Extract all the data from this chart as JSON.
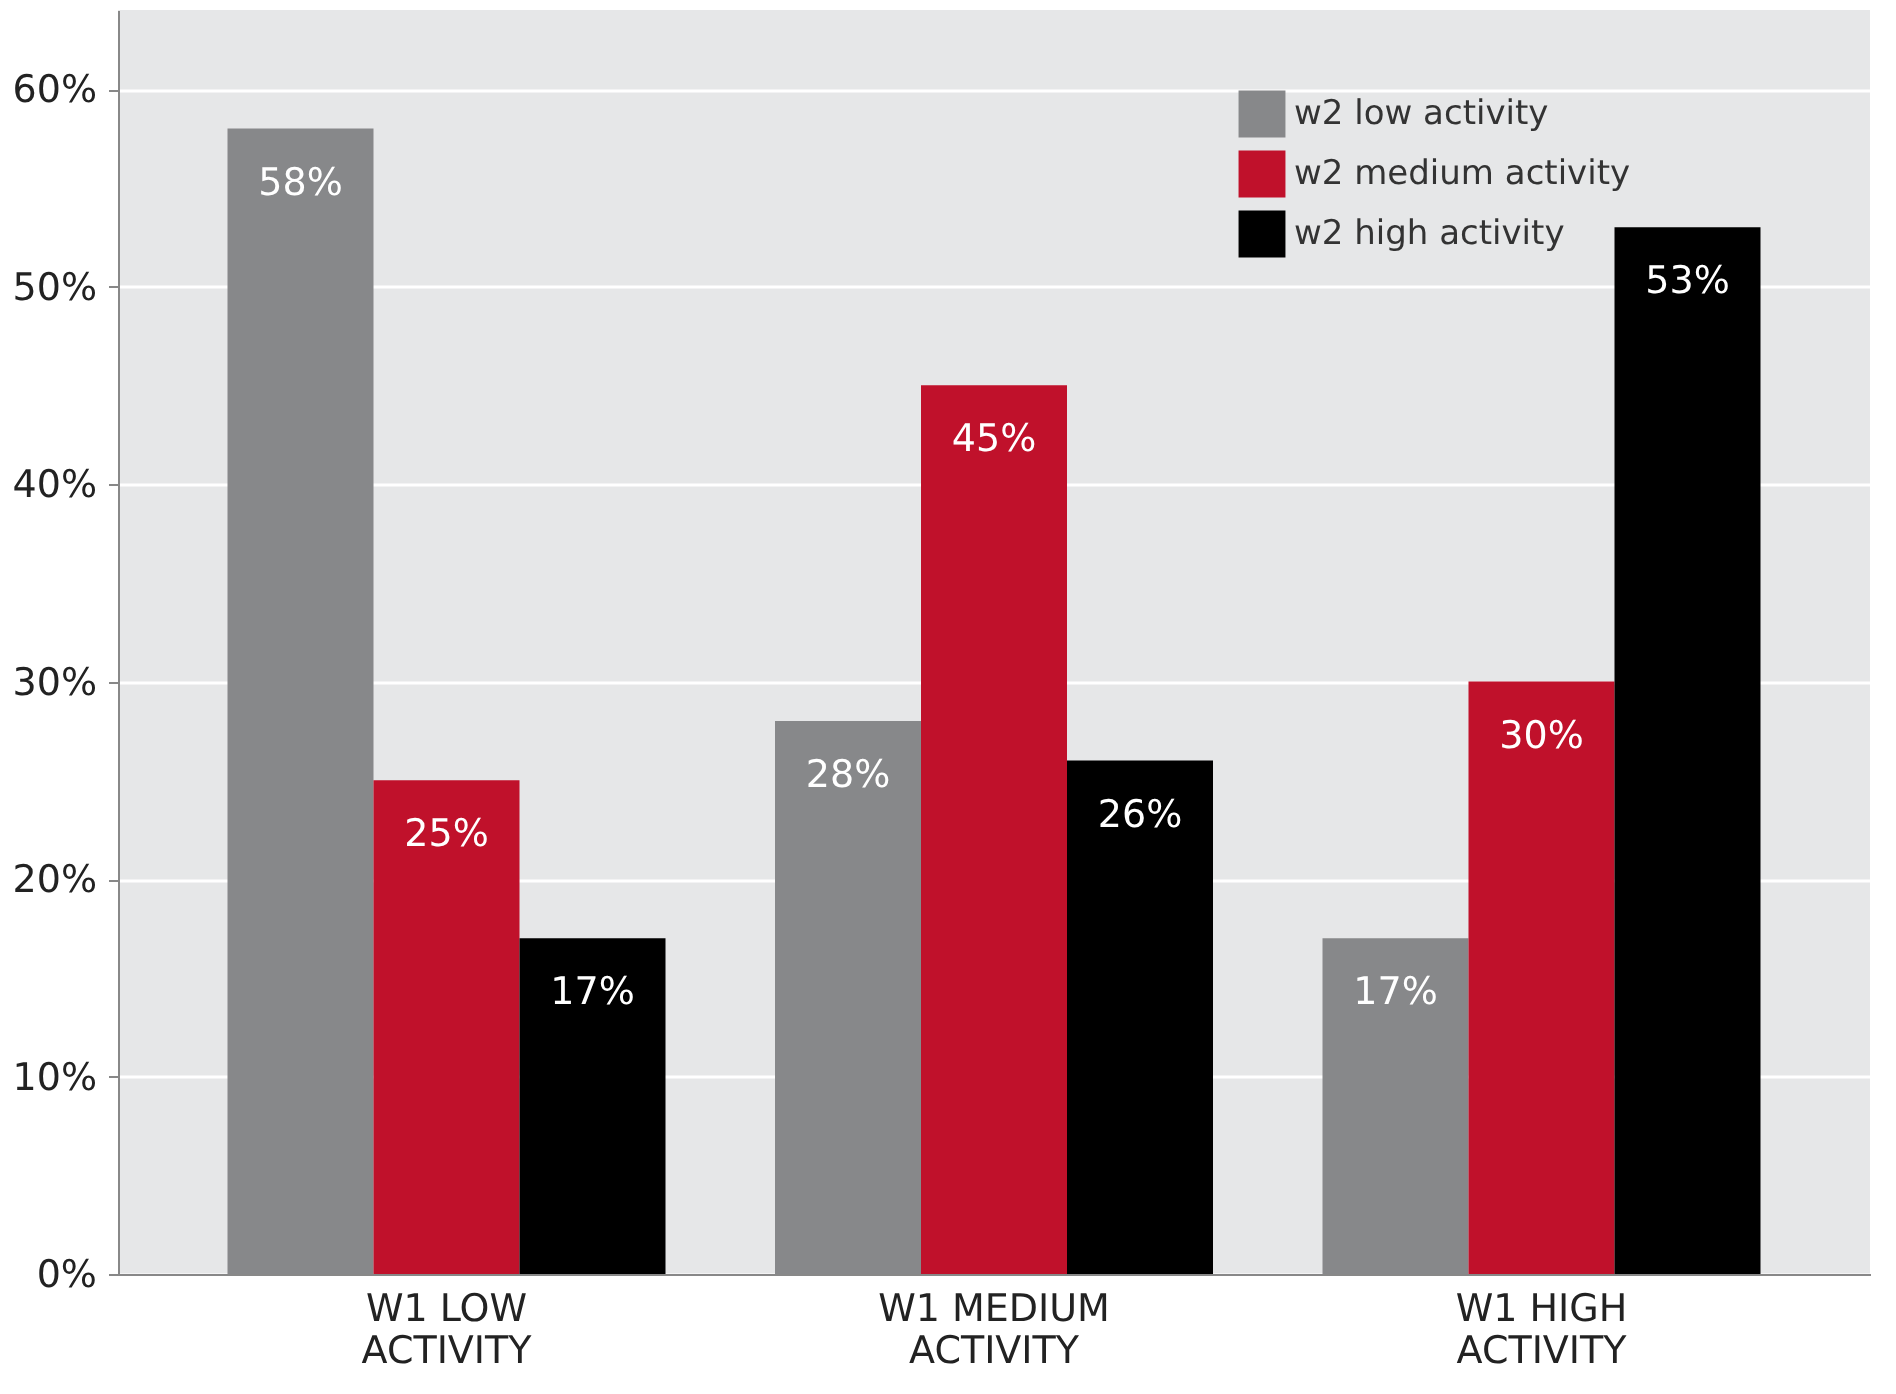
{
  "chart_data": {
    "type": "bar",
    "categories": [
      "W1 LOW ACTIVITY",
      "W1 MEDIUM ACTIVITY",
      "W1 HIGH ACTIVITY"
    ],
    "series": [
      {
        "name": "w2 low activity",
        "color": "#87888a",
        "values": [
          58,
          28,
          17
        ],
        "value_labels": [
          "58%",
          "28%",
          "17%"
        ]
      },
      {
        "name": "w2 medium activity",
        "color": "#c0112b",
        "values": [
          25,
          45,
          30
        ],
        "value_labels": [
          "25%",
          "45%",
          "30%"
        ]
      },
      {
        "name": "w2 high activity",
        "color": "#000000",
        "values": [
          17,
          26,
          53
        ],
        "value_labels": [
          "17%",
          "26%",
          "53%"
        ]
      }
    ],
    "ylim": [
      0,
      64
    ],
    "yticks": [
      {
        "value": 0,
        "label": "0%"
      },
      {
        "value": 10,
        "label": "10%"
      },
      {
        "value": 20,
        "label": "20%"
      },
      {
        "value": 30,
        "label": "30%"
      },
      {
        "value": 40,
        "label": "40%"
      },
      {
        "value": 50,
        "label": "50%"
      },
      {
        "value": 60,
        "label": "60%"
      }
    ],
    "grid": "y",
    "legend": "top right"
  }
}
